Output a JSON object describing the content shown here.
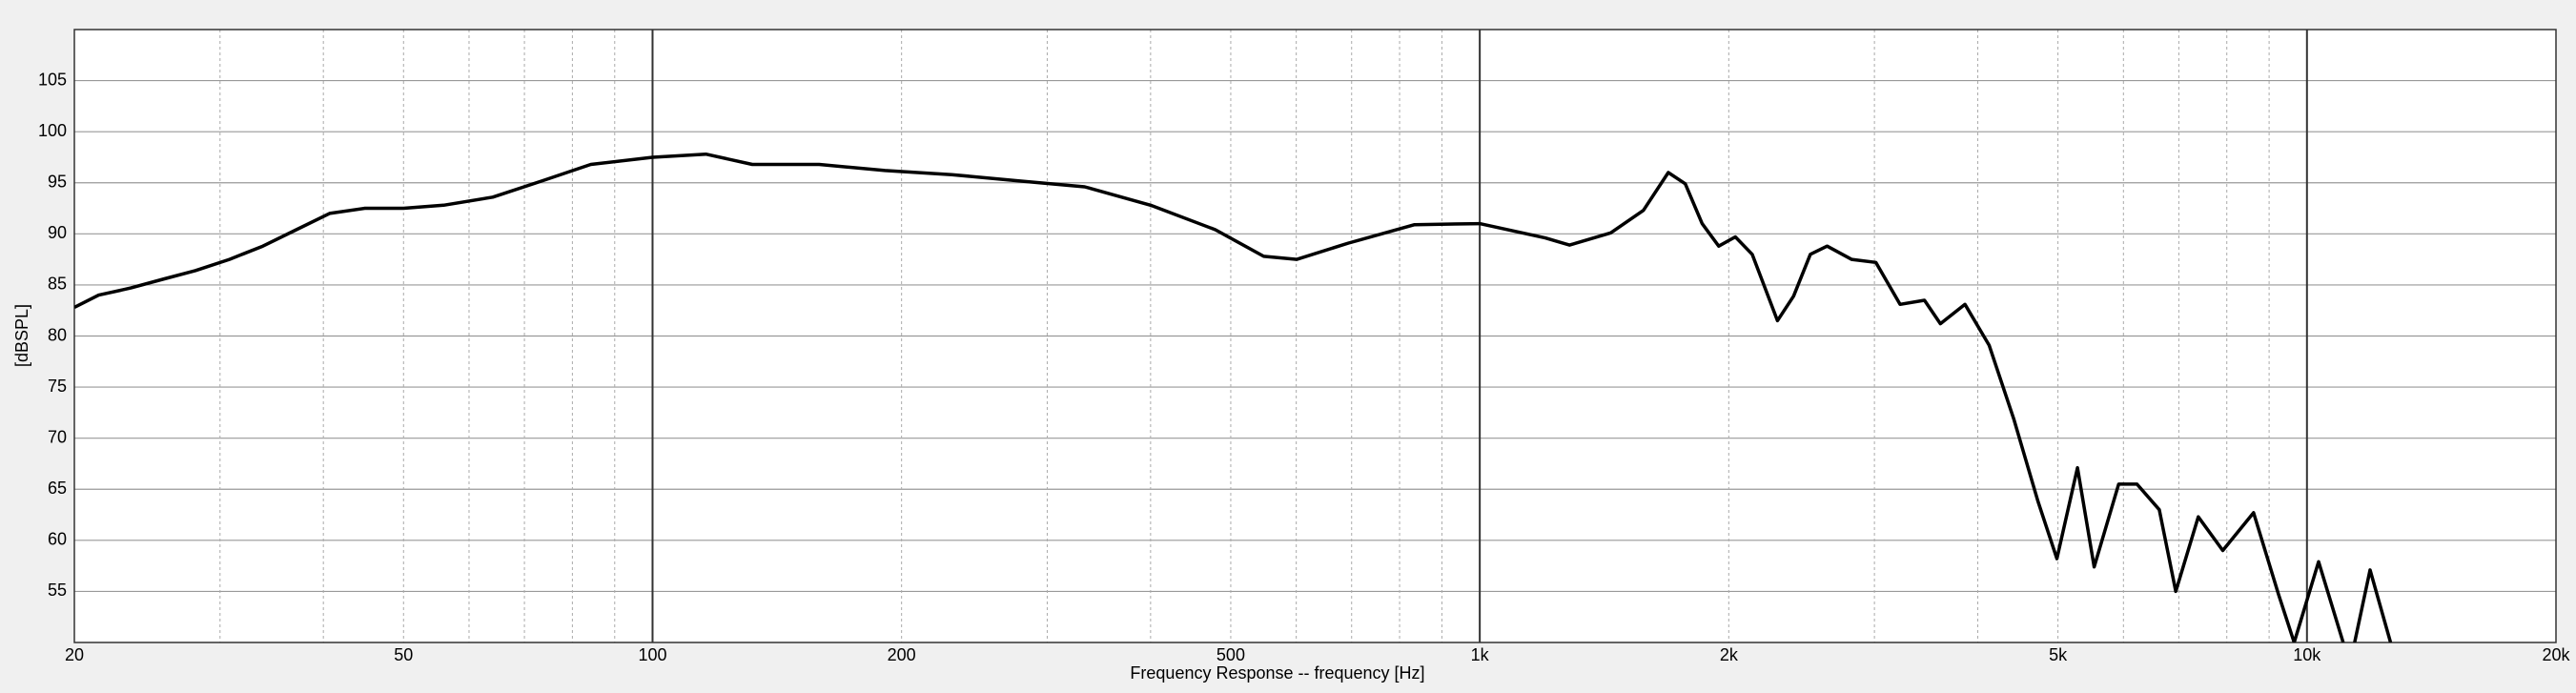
{
  "chart_data": {
    "type": "line",
    "x_label": "Frequency Response -- frequency [Hz]",
    "y_label": "[dBSPL]",
    "x_log": true,
    "grid": true,
    "xlim": [
      20,
      20000
    ],
    "ylim": [
      50,
      110
    ],
    "xticks": [
      20,
      50,
      100,
      200,
      500,
      {
        "value": 1000,
        "label": "1k"
      },
      {
        "value": 2000,
        "label": "2k"
      },
      {
        "value": 5000,
        "label": "5k"
      },
      {
        "value": 10000,
        "label": "10k"
      },
      {
        "value": 20000,
        "label": "20k"
      }
    ],
    "x_minor_grid": [
      30,
      40,
      60,
      70,
      80,
      90,
      300,
      400,
      600,
      700,
      800,
      900,
      3000,
      4000,
      6000,
      7000,
      8000,
      9000
    ],
    "yticks": [
      55,
      60,
      65,
      70,
      75,
      80,
      85,
      90,
      95,
      100,
      105
    ],
    "series": [
      {
        "color": "#000000",
        "x": [
          20,
          21.4,
          23.4,
          25.7,
          28.0,
          30.8,
          33.8,
          37.1,
          40.7,
          44.9,
          50,
          55.9,
          64.1,
          73.6,
          84.2,
          100,
          116,
          132,
          159,
          191,
          230,
          276,
          333,
          400,
          479,
          548,
          601,
          694,
          834,
          1000,
          1200,
          1284,
          1440,
          1577,
          1690,
          1772,
          1857,
          1945,
          2037,
          2135,
          2290,
          2395,
          2510,
          2630,
          2815,
          3012,
          3222,
          3448,
          3605,
          3860,
          4128,
          4420,
          4730,
          4985,
          5280,
          5530,
          5920,
          6230,
          6630,
          6940,
          7390,
          7910,
          8620,
          9240,
          9650,
          10330,
          11060,
          null,
          11420,
          11920,
          12620
        ],
        "values": [
          82.8,
          84,
          84.7,
          85.6,
          86.4,
          87.5,
          88.8,
          90.4,
          92.0,
          92.5,
          92.5,
          92.8,
          93.6,
          95.2,
          96.8,
          97.5,
          97.8,
          96.8,
          96.8,
          96.2,
          95.8,
          95.2,
          94.6,
          92.8,
          90.4,
          87.8,
          87.5,
          89.1,
          90.9,
          91.0,
          89.6,
          88.9,
          90.1,
          92.3,
          96.0,
          94.9,
          91.0,
          88.8,
          89.7,
          88.0,
          81.5,
          83.9,
          88.0,
          88.8,
          87.5,
          87.2,
          83.1,
          83.5,
          81.2,
          83.1,
          79.1,
          71.9,
          63.8,
          58.2,
          67.1,
          57.4,
          65.5,
          65.5,
          63.0,
          55.0,
          62.3,
          59.0,
          62.7,
          54.7,
          50,
          57.9,
          50,
          null,
          50,
          57.1,
          50
        ]
      }
    ]
  }
}
